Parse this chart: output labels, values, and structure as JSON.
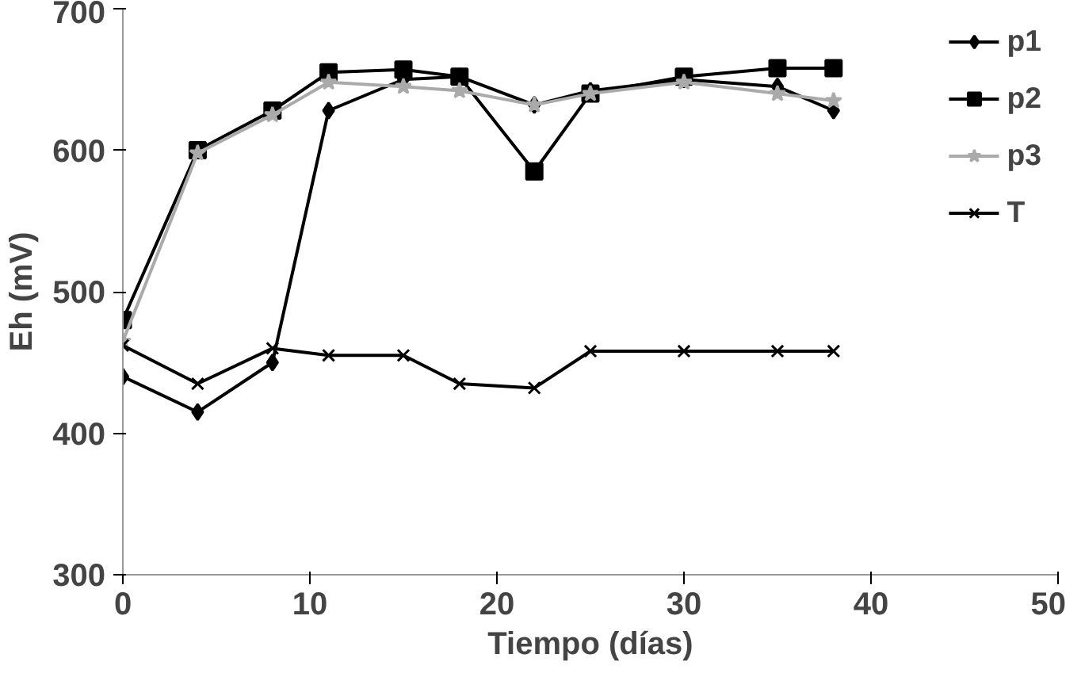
{
  "chart_data": {
    "type": "line",
    "xlabel": "Tiempo (días)",
    "ylabel": "Eh (mV)",
    "x": [
      0,
      4,
      8,
      11,
      15,
      18,
      22,
      25,
      30,
      35,
      38
    ],
    "xlim": [
      0,
      50
    ],
    "xticks": [
      0,
      10,
      20,
      30,
      40,
      50
    ],
    "ylim": [
      300,
      700
    ],
    "yticks": [
      300,
      400,
      500,
      600,
      700
    ],
    "grid": false,
    "legend": "top right",
    "line_style": "solid",
    "series": [
      {
        "name": "p1",
        "color": "#000000",
        "marker": "diamond",
        "values": [
          440,
          415,
          450,
          628,
          650,
          652,
          632,
          642,
          650,
          645,
          628
        ]
      },
      {
        "name": "p2",
        "color": "#000000",
        "marker": "square",
        "values": [
          480,
          600,
          628,
          655,
          657,
          652,
          585,
          640,
          652,
          658,
          658
        ]
      },
      {
        "name": "p3",
        "color": "#aaaaaa",
        "marker": "star",
        "values": [
          465,
          598,
          625,
          648,
          645,
          642,
          632,
          640,
          648,
          640,
          635
        ]
      },
      {
        "name": "T",
        "color": "#000000",
        "marker": "x",
        "values": [
          462,
          435,
          460,
          455,
          455,
          435,
          432,
          458,
          458,
          458,
          458
        ]
      }
    ]
  }
}
